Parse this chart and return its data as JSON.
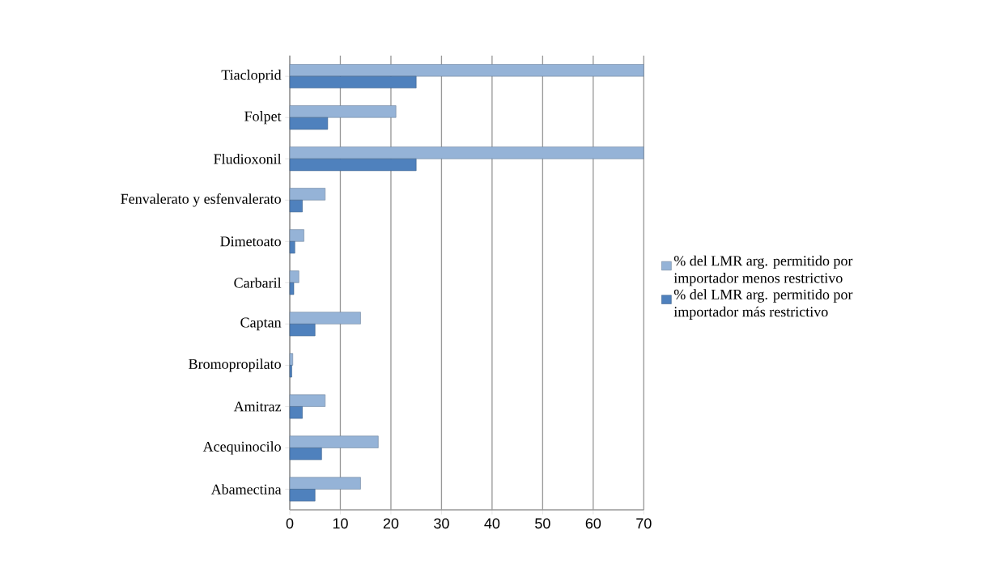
{
  "chart_data": {
    "type": "bar",
    "orientation": "horizontal",
    "categories": [
      "Tiacloprid",
      "Folpet",
      "Fludioxonil",
      "Fenvalerato y esfenvalerato",
      "Dimetoato",
      "Carbaril",
      "Captan",
      "Bromopropilato",
      "Amitraz",
      "Acequinocilo",
      "Abamectina"
    ],
    "series": [
      {
        "name": "% del LMR arg. permitido por importador menos restrictivo",
        "color": "#95b3d7",
        "values": [
          70,
          21,
          70,
          7,
          2.8,
          1.8,
          14,
          0.6,
          7,
          17.5,
          14
        ]
      },
      {
        "name": "% del LMR arg. permitido por importador más restrictivo",
        "color": "#4f81bd",
        "values": [
          25,
          7.5,
          25,
          2.5,
          1,
          0.8,
          5,
          0.4,
          2.5,
          6.3,
          5
        ]
      }
    ],
    "xlim": [
      0,
      70
    ],
    "xticks": [
      0,
      10,
      20,
      30,
      40,
      50,
      60,
      70
    ],
    "grid": "x",
    "legend": "right"
  }
}
